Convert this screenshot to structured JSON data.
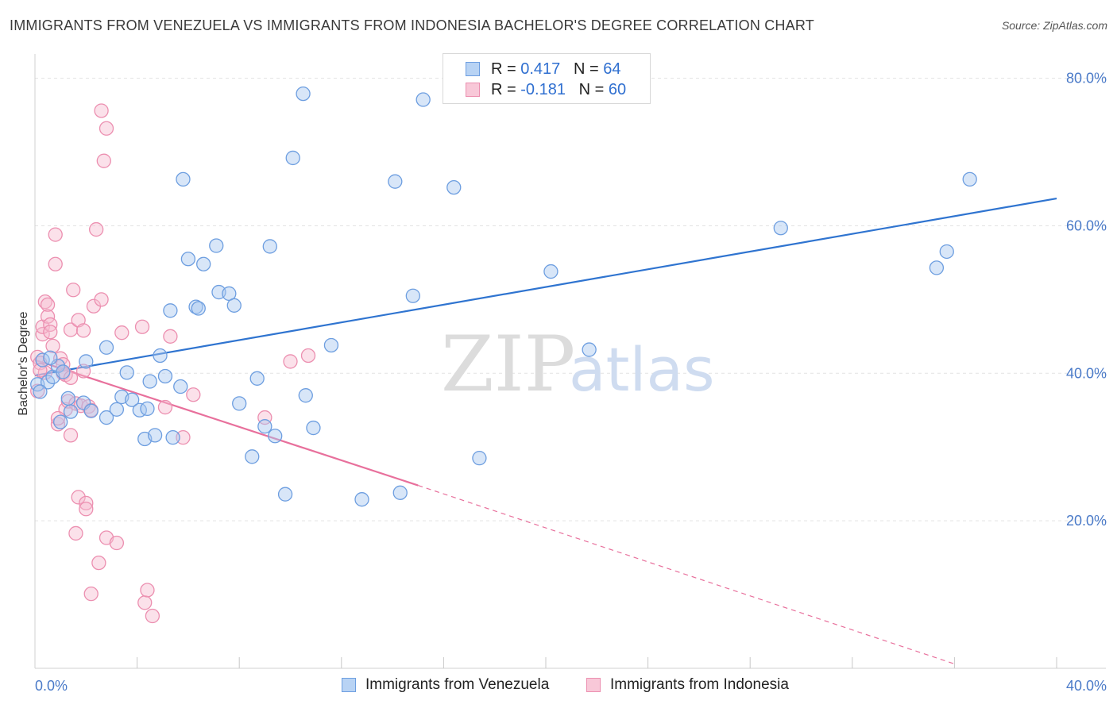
{
  "header": {
    "title": "IMMIGRANTS FROM VENEZUELA VS IMMIGRANTS FROM INDONESIA BACHELOR'S DEGREE CORRELATION CHART",
    "source": "Source: ZipAtlas.com"
  },
  "legend": {
    "series1": {
      "r_label": "R = ",
      "r_value": "0.417",
      "n_label": "N = ",
      "n_value": "64"
    },
    "series2": {
      "r_label": "R = ",
      "r_value": "-0.181",
      "n_label": "N = ",
      "n_value": "60"
    }
  },
  "watermark": {
    "zip": "ZIP",
    "atlas": "atlas"
  },
  "colors": {
    "blue_fill": "#a9c8f0",
    "blue_stroke": "#6d9ee0",
    "blue_line": "#2f74d0",
    "pink_fill": "#f7bcd0",
    "pink_stroke": "#ec8fb0",
    "pink_line": "#e8709c",
    "grid": "#e3e3e3",
    "tick_text": "#4a7ac8"
  },
  "chart_data": {
    "type": "scatter",
    "title": "IMMIGRANTS FROM VENEZUELA VS IMMIGRANTS FROM INDONESIA BACHELOR'S DEGREE CORRELATION CHART",
    "xlabel": "",
    "ylabel": "Bachelor's Degree",
    "xlim": [
      0,
      40
    ],
    "ylim": [
      0,
      82
    ],
    "x_tick_labels": [
      "0.0%",
      "40.0%"
    ],
    "y_ticks": [
      20,
      40,
      60,
      80
    ],
    "y_tick_labels": [
      "20.0%",
      "40.0%",
      "60.0%",
      "80.0%"
    ],
    "grid": true,
    "legend_position": "top-center",
    "series": [
      {
        "name": "Immigrants from Venezuela",
        "color": "#6d9ee0",
        "points": [
          [
            0.1,
            38.5
          ],
          [
            0.3,
            41.8
          ],
          [
            0.5,
            38.8
          ],
          [
            0.7,
            39.5
          ],
          [
            0.9,
            41.0
          ],
          [
            1.1,
            40.2
          ],
          [
            1.4,
            34.8
          ],
          [
            1.3,
            36.6
          ],
          [
            1.0,
            33.4
          ],
          [
            1.9,
            36.0
          ],
          [
            2.2,
            34.9
          ],
          [
            2.0,
            41.6
          ],
          [
            2.8,
            34.0
          ],
          [
            2.8,
            43.5
          ],
          [
            3.2,
            35.1
          ],
          [
            3.4,
            36.8
          ],
          [
            3.6,
            40.1
          ],
          [
            3.8,
            36.4
          ],
          [
            4.1,
            35.0
          ],
          [
            4.4,
            35.2
          ],
          [
            4.3,
            31.1
          ],
          [
            4.5,
            38.9
          ],
          [
            4.7,
            31.6
          ],
          [
            4.9,
            42.4
          ],
          [
            5.1,
            39.6
          ],
          [
            5.3,
            48.5
          ],
          [
            5.4,
            31.3
          ],
          [
            5.7,
            38.2
          ],
          [
            5.8,
            66.3
          ],
          [
            6.0,
            55.5
          ],
          [
            6.3,
            49.0
          ],
          [
            6.4,
            48.8
          ],
          [
            6.6,
            54.8
          ],
          [
            7.1,
            57.3
          ],
          [
            7.2,
            51.0
          ],
          [
            7.6,
            50.8
          ],
          [
            7.8,
            49.2
          ],
          [
            8.0,
            35.9
          ],
          [
            8.5,
            28.7
          ],
          [
            8.7,
            39.3
          ],
          [
            9.0,
            32.8
          ],
          [
            9.2,
            57.2
          ],
          [
            9.4,
            31.5
          ],
          [
            9.8,
            23.6
          ],
          [
            10.1,
            69.2
          ],
          [
            10.5,
            77.9
          ],
          [
            10.6,
            37.0
          ],
          [
            10.9,
            32.6
          ],
          [
            11.6,
            43.8
          ],
          [
            12.8,
            22.9
          ],
          [
            14.1,
            66.0
          ],
          [
            14.3,
            23.8
          ],
          [
            14.8,
            50.5
          ],
          [
            15.2,
            77.1
          ],
          [
            16.4,
            65.2
          ],
          [
            17.4,
            28.5
          ],
          [
            20.2,
            53.8
          ],
          [
            21.7,
            43.2
          ],
          [
            29.2,
            59.7
          ],
          [
            35.3,
            54.3
          ],
          [
            35.7,
            56.5
          ],
          [
            36.6,
            66.3
          ],
          [
            0.2,
            37.5
          ],
          [
            0.6,
            42.1
          ]
        ]
      },
      {
        "name": "Immigrants from Indonesia",
        "color": "#ec8fb0",
        "points": [
          [
            0.1,
            42.2
          ],
          [
            0.1,
            37.6
          ],
          [
            0.2,
            41.4
          ],
          [
            0.3,
            45.3
          ],
          [
            0.3,
            46.3
          ],
          [
            0.4,
            49.7
          ],
          [
            0.4,
            40.1
          ],
          [
            0.5,
            49.3
          ],
          [
            0.5,
            47.7
          ],
          [
            0.6,
            46.6
          ],
          [
            0.6,
            45.6
          ],
          [
            0.7,
            43.7
          ],
          [
            0.8,
            58.8
          ],
          [
            0.8,
            54.8
          ],
          [
            0.9,
            33.1
          ],
          [
            1.0,
            42.0
          ],
          [
            1.1,
            40.0
          ],
          [
            1.1,
            41.2
          ],
          [
            1.2,
            39.8
          ],
          [
            1.2,
            35.1
          ],
          [
            1.3,
            36.2
          ],
          [
            1.4,
            39.4
          ],
          [
            1.4,
            31.6
          ],
          [
            1.4,
            45.9
          ],
          [
            1.5,
            51.3
          ],
          [
            1.6,
            35.9
          ],
          [
            1.6,
            18.3
          ],
          [
            1.7,
            23.2
          ],
          [
            1.7,
            47.2
          ],
          [
            1.8,
            35.6
          ],
          [
            1.9,
            45.8
          ],
          [
            1.9,
            40.3
          ],
          [
            2.0,
            22.4
          ],
          [
            2.0,
            21.6
          ],
          [
            2.1,
            35.5
          ],
          [
            2.2,
            10.1
          ],
          [
            2.3,
            49.1
          ],
          [
            2.4,
            59.5
          ],
          [
            2.5,
            14.3
          ],
          [
            2.6,
            75.6
          ],
          [
            2.6,
            50.0
          ],
          [
            2.7,
            68.8
          ],
          [
            2.8,
            73.2
          ],
          [
            2.8,
            17.7
          ],
          [
            3.2,
            17.0
          ],
          [
            3.4,
            45.5
          ],
          [
            4.2,
            46.3
          ],
          [
            4.3,
            8.9
          ],
          [
            4.4,
            10.6
          ],
          [
            4.6,
            7.1
          ],
          [
            5.1,
            35.4
          ],
          [
            5.3,
            45.0
          ],
          [
            5.8,
            31.3
          ],
          [
            6.2,
            37.1
          ],
          [
            9.0,
            34.0
          ],
          [
            10.0,
            41.6
          ],
          [
            10.7,
            42.4
          ],
          [
            0.2,
            40.4
          ],
          [
            0.9,
            33.9
          ],
          [
            2.2,
            35.0
          ]
        ]
      }
    ],
    "trendlines": [
      {
        "series": "Immigrants from Venezuela",
        "x": [
          0,
          40
        ],
        "y": [
          39.7,
          63.7
        ],
        "style": "solid"
      },
      {
        "series": "Immigrants from Indonesia",
        "x": [
          0,
          15
        ],
        "y": [
          41.8,
          24.8
        ],
        "style": "solid"
      },
      {
        "series": "Immigrants from Indonesia",
        "x": [
          15,
          36
        ],
        "y": [
          24.8,
          0.6
        ],
        "style": "dashed"
      }
    ]
  },
  "bottom_legend": {
    "item1": "Immigrants from Venezuela",
    "item2": "Immigrants from Indonesia"
  }
}
